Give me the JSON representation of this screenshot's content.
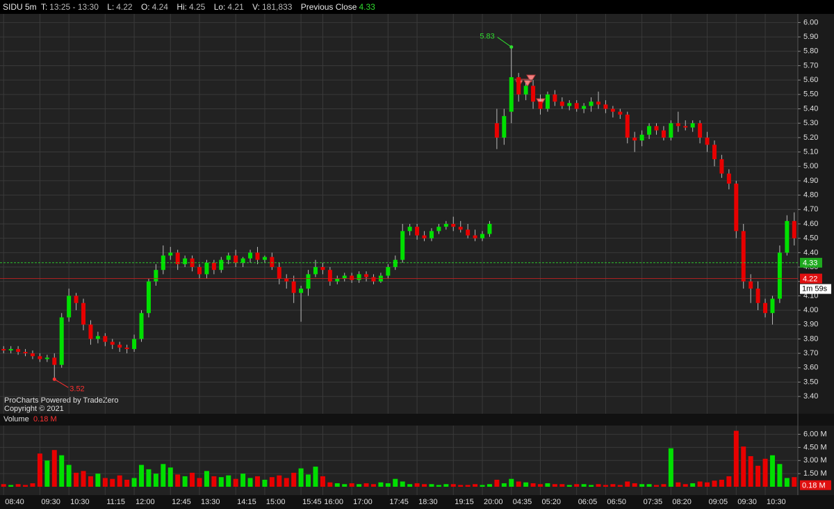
{
  "chart_data": {
    "type": "candlestick",
    "header": {
      "symbol": "SIDU 5m",
      "time_label": "T:",
      "time": "13:25 - 13:30",
      "last_label": "L:",
      "last": 4.22,
      "open_label": "O:",
      "open": 4.24,
      "high_label": "Hi:",
      "high": 4.25,
      "low_label": "Lo:",
      "low": 4.21,
      "volume_label": "V:",
      "volume": "181,833",
      "previous_close_label": "Previous Close",
      "previous_close": 4.33
    },
    "countdown": "1m 59s",
    "watermark": [
      "ProCharts Powered by TradeZero",
      "Copyright © 2021"
    ],
    "volume_title": "Volume",
    "last_volume": {
      "value": 0.18,
      "label": "0.18 M"
    },
    "up_color": "#00e000",
    "down_color": "#e80000",
    "grid": true,
    "annotations": {
      "low": 3.52,
      "low_index": 7,
      "high": 5.83,
      "high_index": 70
    },
    "categories": [
      "08:40",
      null,
      null,
      null,
      null,
      "09:30",
      null,
      null,
      null,
      "10:30",
      null,
      null,
      null,
      null,
      "11:15",
      null,
      null,
      null,
      "12:00",
      null,
      null,
      null,
      null,
      "12:45",
      null,
      null,
      null,
      "13:30",
      null,
      null,
      null,
      null,
      "14:15",
      null,
      null,
      null,
      "15:00",
      null,
      null,
      null,
      null,
      "15:45",
      null,
      null,
      "16:00",
      null,
      null,
      null,
      "17:00",
      null,
      null,
      null,
      null,
      "17:45",
      null,
      null,
      null,
      "18:30",
      null,
      null,
      null,
      null,
      "19:15",
      null,
      null,
      null,
      "20:00",
      null,
      null,
      null,
      "04:35",
      null,
      null,
      null,
      "05:20",
      null,
      null,
      null,
      null,
      "06:05",
      null,
      null,
      null,
      "06:50",
      null,
      null,
      null,
      null,
      "07:35",
      null,
      null,
      null,
      "08:20",
      null,
      null,
      null,
      null,
      "09:05",
      null,
      null,
      null,
      "09:30",
      null,
      null,
      null,
      "10:30",
      null,
      null,
      null,
      null
    ],
    "open": [
      3.73,
      3.72,
      3.73,
      3.71,
      3.7,
      3.68,
      3.66,
      3.67,
      3.62,
      3.95,
      4.1,
      4.05,
      3.9,
      3.8,
      3.82,
      3.78,
      3.76,
      3.74,
      3.73,
      3.8,
      3.98,
      4.2,
      4.28,
      4.38,
      4.4,
      4.32,
      4.36,
      4.3,
      4.25,
      4.33,
      4.28,
      4.35,
      4.38,
      4.33,
      4.36,
      4.4,
      4.35,
      4.37,
      4.3,
      4.22,
      4.2,
      4.12,
      4.15,
      4.25,
      4.3,
      4.28,
      4.2,
      4.22,
      4.24,
      4.21,
      4.25,
      4.23,
      4.2,
      4.24,
      4.3,
      4.35,
      4.55,
      4.58,
      4.52,
      4.5,
      4.55,
      4.58,
      4.6,
      4.58,
      4.56,
      4.52,
      4.5,
      4.53,
      5.3,
      5.2,
      5.38,
      5.62,
      5.5,
      5.56,
      5.45,
      5.4,
      5.5,
      5.45,
      5.42,
      5.44,
      5.4,
      5.42,
      5.45,
      5.43,
      5.4,
      5.38,
      5.36,
      5.2,
      5.18,
      5.22,
      5.28,
      5.25,
      5.2,
      5.3,
      5.28,
      5.27,
      5.3,
      5.2,
      5.15,
      5.05,
      4.95,
      4.88,
      4.55,
      4.2,
      4.15,
      4.05,
      3.98,
      4.08,
      4.4,
      4.62
    ],
    "high": [
      3.75,
      3.75,
      3.75,
      3.73,
      3.72,
      3.7,
      3.69,
      3.7,
      3.98,
      4.15,
      4.12,
      4.08,
      3.93,
      3.85,
      3.84,
      3.8,
      3.78,
      3.76,
      3.83,
      4.0,
      4.22,
      4.32,
      4.45,
      4.44,
      4.42,
      4.38,
      4.38,
      4.32,
      4.35,
      4.35,
      4.37,
      4.4,
      4.42,
      4.37,
      4.42,
      4.44,
      4.38,
      4.4,
      4.33,
      4.25,
      4.24,
      4.17,
      4.28,
      4.35,
      4.33,
      4.3,
      4.24,
      4.26,
      4.26,
      4.27,
      4.27,
      4.25,
      4.26,
      4.32,
      4.38,
      4.6,
      4.6,
      4.6,
      4.55,
      4.57,
      4.6,
      4.62,
      4.65,
      4.62,
      4.6,
      4.56,
      4.55,
      4.62,
      5.4,
      5.4,
      5.83,
      5.65,
      5.58,
      5.6,
      5.5,
      5.52,
      5.53,
      5.48,
      5.46,
      5.46,
      5.44,
      5.48,
      5.52,
      5.46,
      5.42,
      5.4,
      5.38,
      5.24,
      5.25,
      5.3,
      5.3,
      5.28,
      5.32,
      5.38,
      5.32,
      5.32,
      5.32,
      5.24,
      5.18,
      5.08,
      4.98,
      4.9,
      4.6,
      4.25,
      4.2,
      4.08,
      4.1,
      4.45,
      4.66,
      4.68
    ],
    "low": [
      3.7,
      3.7,
      3.69,
      3.68,
      3.66,
      3.64,
      3.64,
      3.52,
      3.6,
      3.92,
      4.0,
      3.86,
      3.76,
      3.77,
      3.75,
      3.73,
      3.71,
      3.7,
      3.71,
      3.78,
      3.95,
      4.17,
      4.25,
      4.35,
      4.28,
      4.3,
      4.27,
      4.22,
      4.22,
      4.25,
      4.26,
      4.32,
      4.3,
      4.3,
      4.33,
      4.32,
      4.33,
      4.28,
      4.18,
      4.15,
      4.05,
      3.92,
      4.1,
      4.23,
      4.25,
      4.17,
      4.18,
      4.2,
      4.19,
      4.19,
      4.2,
      4.18,
      4.19,
      4.22,
      4.28,
      4.33,
      4.52,
      4.49,
      4.48,
      4.48,
      4.53,
      4.56,
      4.55,
      4.54,
      4.5,
      4.48,
      4.48,
      4.51,
      5.12,
      5.15,
      5.3,
      5.45,
      5.46,
      5.4,
      5.36,
      5.38,
      5.42,
      5.4,
      5.39,
      5.38,
      5.37,
      5.38,
      5.4,
      5.37,
      5.34,
      5.33,
      5.16,
      5.1,
      5.14,
      5.19,
      5.22,
      5.18,
      5.18,
      5.24,
      5.25,
      5.24,
      5.16,
      5.1,
      5.0,
      4.92,
      4.84,
      4.5,
      4.15,
      4.05,
      4.0,
      3.95,
      3.9,
      4.05,
      4.38,
      4.45
    ],
    "close": [
      3.72,
      3.73,
      3.71,
      3.7,
      3.68,
      3.66,
      3.67,
      3.62,
      3.95,
      4.1,
      4.05,
      3.9,
      3.8,
      3.82,
      3.78,
      3.76,
      3.74,
      3.73,
      3.8,
      3.98,
      4.2,
      4.28,
      4.38,
      4.4,
      4.32,
      4.36,
      4.3,
      4.25,
      4.33,
      4.28,
      4.35,
      4.38,
      4.33,
      4.36,
      4.4,
      4.35,
      4.37,
      4.3,
      4.22,
      4.2,
      4.12,
      4.15,
      4.25,
      4.3,
      4.28,
      4.2,
      4.22,
      4.24,
      4.21,
      4.25,
      4.23,
      4.2,
      4.24,
      4.3,
      4.35,
      4.55,
      4.58,
      4.52,
      4.5,
      4.55,
      4.58,
      4.6,
      4.58,
      4.56,
      4.52,
      4.5,
      4.53,
      4.6,
      5.2,
      5.35,
      5.62,
      5.5,
      5.56,
      5.45,
      5.4,
      5.5,
      5.45,
      5.42,
      5.44,
      5.4,
      5.42,
      5.45,
      5.43,
      5.4,
      5.38,
      5.36,
      5.2,
      5.18,
      5.22,
      5.28,
      5.25,
      5.2,
      5.3,
      5.28,
      5.27,
      5.3,
      5.2,
      5.15,
      5.05,
      4.95,
      4.88,
      4.55,
      4.2,
      4.15,
      4.05,
      3.98,
      4.08,
      4.4,
      4.62,
      4.5
    ],
    "volume": [
      0.3,
      0.2,
      0.3,
      0.2,
      0.4,
      3.8,
      3.0,
      4.2,
      3.6,
      2.5,
      1.6,
      1.8,
      1.2,
      1.5,
      1.0,
      0.9,
      1.3,
      0.8,
      1.0,
      2.5,
      2.0,
      1.5,
      2.6,
      2.2,
      1.4,
      1.2,
      1.6,
      1.0,
      1.8,
      1.2,
      1.1,
      1.3,
      0.9,
      1.5,
      1.0,
      1.2,
      0.8,
      1.1,
      1.3,
      1.0,
      1.6,
      2.1,
      1.4,
      2.3,
      1.2,
      0.5,
      0.4,
      0.3,
      0.4,
      0.3,
      0.4,
      0.3,
      0.5,
      0.4,
      0.9,
      0.6,
      0.3,
      0.4,
      0.3,
      0.3,
      0.2,
      0.3,
      0.3,
      0.2,
      0.2,
      0.3,
      0.2,
      0.3,
      0.8,
      0.4,
      0.9,
      0.6,
      0.5,
      0.4,
      0.3,
      0.4,
      0.3,
      0.3,
      0.2,
      0.3,
      0.3,
      0.2,
      0.3,
      0.2,
      0.3,
      0.2,
      0.6,
      0.4,
      0.3,
      0.3,
      0.2,
      0.3,
      4.4,
      0.5,
      0.3,
      0.4,
      0.6,
      0.5,
      0.7,
      0.8,
      1.2,
      6.4,
      4.6,
      3.5,
      2.4,
      3.2,
      3.6,
      2.6,
      1.0,
      1.1
    ],
    "ylim": [
      3.28,
      6.06
    ],
    "yticks": [
      {
        "value": 3.4,
        "label": "3.40"
      },
      {
        "value": 3.5,
        "label": "3.50"
      },
      {
        "value": 3.6,
        "label": "3.60"
      },
      {
        "value": 3.7,
        "label": "3.70"
      },
      {
        "value": 3.8,
        "label": "3.80"
      },
      {
        "value": 3.9,
        "label": "3.90"
      },
      {
        "value": 4.0,
        "label": "4.00"
      },
      {
        "value": 4.1,
        "label": "4.10"
      },
      {
        "value": 4.2,
        "label": "4.20"
      },
      {
        "value": 4.3,
        "label": "4.30"
      },
      {
        "value": 4.4,
        "label": "4.40"
      },
      {
        "value": 4.5,
        "label": "4.50"
      },
      {
        "value": 4.6,
        "label": "4.60"
      },
      {
        "value": 4.7,
        "label": "4.70"
      },
      {
        "value": 4.8,
        "label": "4.80"
      },
      {
        "value": 4.9,
        "label": "4.90"
      },
      {
        "value": 5.0,
        "label": "5.00"
      },
      {
        "value": 5.1,
        "label": "5.10"
      },
      {
        "value": 5.2,
        "label": "5.20"
      },
      {
        "value": 5.3,
        "label": "5.30"
      },
      {
        "value": 5.4,
        "label": "5.40"
      },
      {
        "value": 5.5,
        "label": "5.50"
      },
      {
        "value": 5.6,
        "label": "5.60"
      },
      {
        "value": 5.7,
        "label": "5.70"
      },
      {
        "value": 5.8,
        "label": "5.80"
      },
      {
        "value": 5.9,
        "label": "5.90"
      },
      {
        "value": 6.0,
        "label": "6.00"
      }
    ],
    "y2lim": [
      0,
      7
    ],
    "y2ticks": [
      {
        "value": 1.5,
        "label": "1.50 M"
      },
      {
        "value": 3,
        "label": "3.00 M"
      },
      {
        "value": 4.5,
        "label": "4.50 M"
      },
      {
        "value": 6,
        "label": "6.00 M"
      }
    ]
  }
}
